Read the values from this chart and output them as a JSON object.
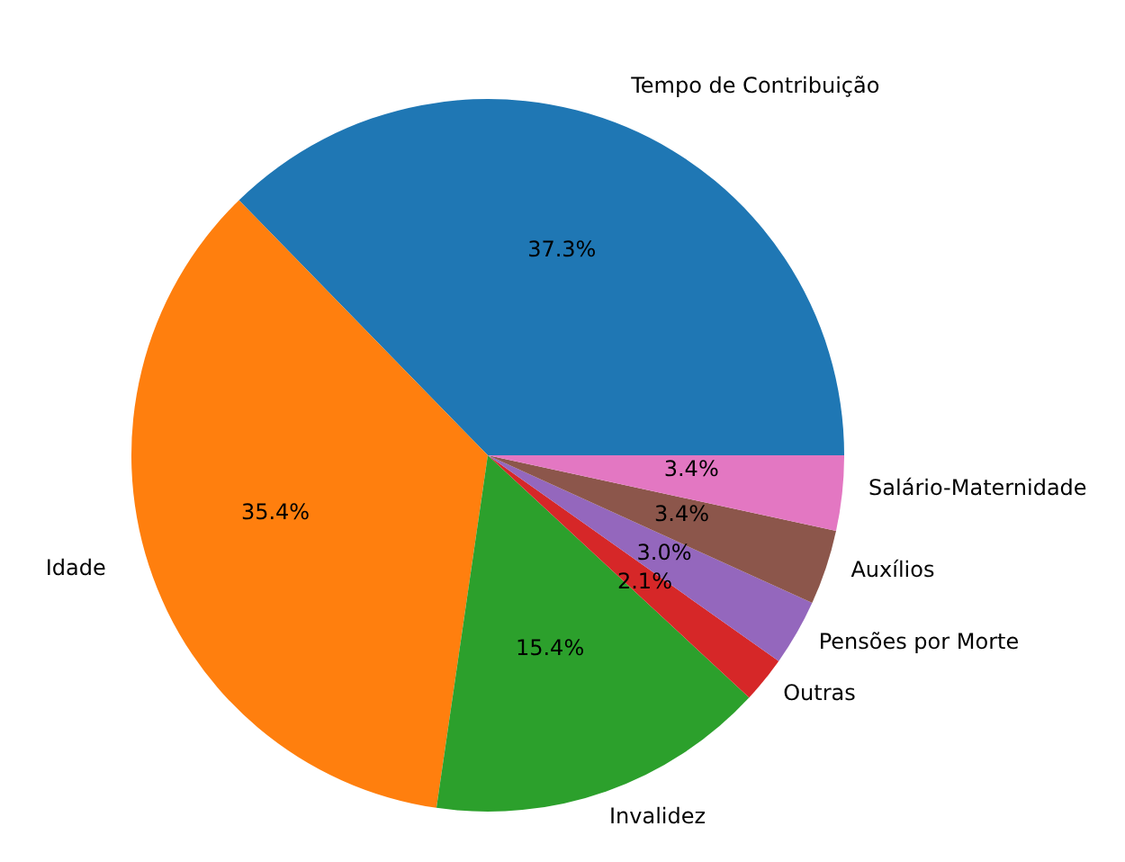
{
  "chart_data": {
    "type": "pie",
    "categories": [
      "Tempo de Contribuição",
      "Idade",
      "Invalidez",
      "Outras",
      "Pensões por Morte",
      "Auxílios",
      "Salário-Maternidade"
    ],
    "values": [
      37.3,
      35.4,
      15.4,
      2.1,
      3.0,
      3.4,
      3.4
    ],
    "colors": [
      "#1f77b4",
      "#ff7f0e",
      "#2ca02c",
      "#d62728",
      "#9467bd",
      "#8c564b",
      "#e377c2"
    ],
    "value_labels": [
      "37.3%",
      "35.4%",
      "15.4%",
      "2.1%",
      "3.0%",
      "3.4%",
      "3.4%"
    ]
  }
}
